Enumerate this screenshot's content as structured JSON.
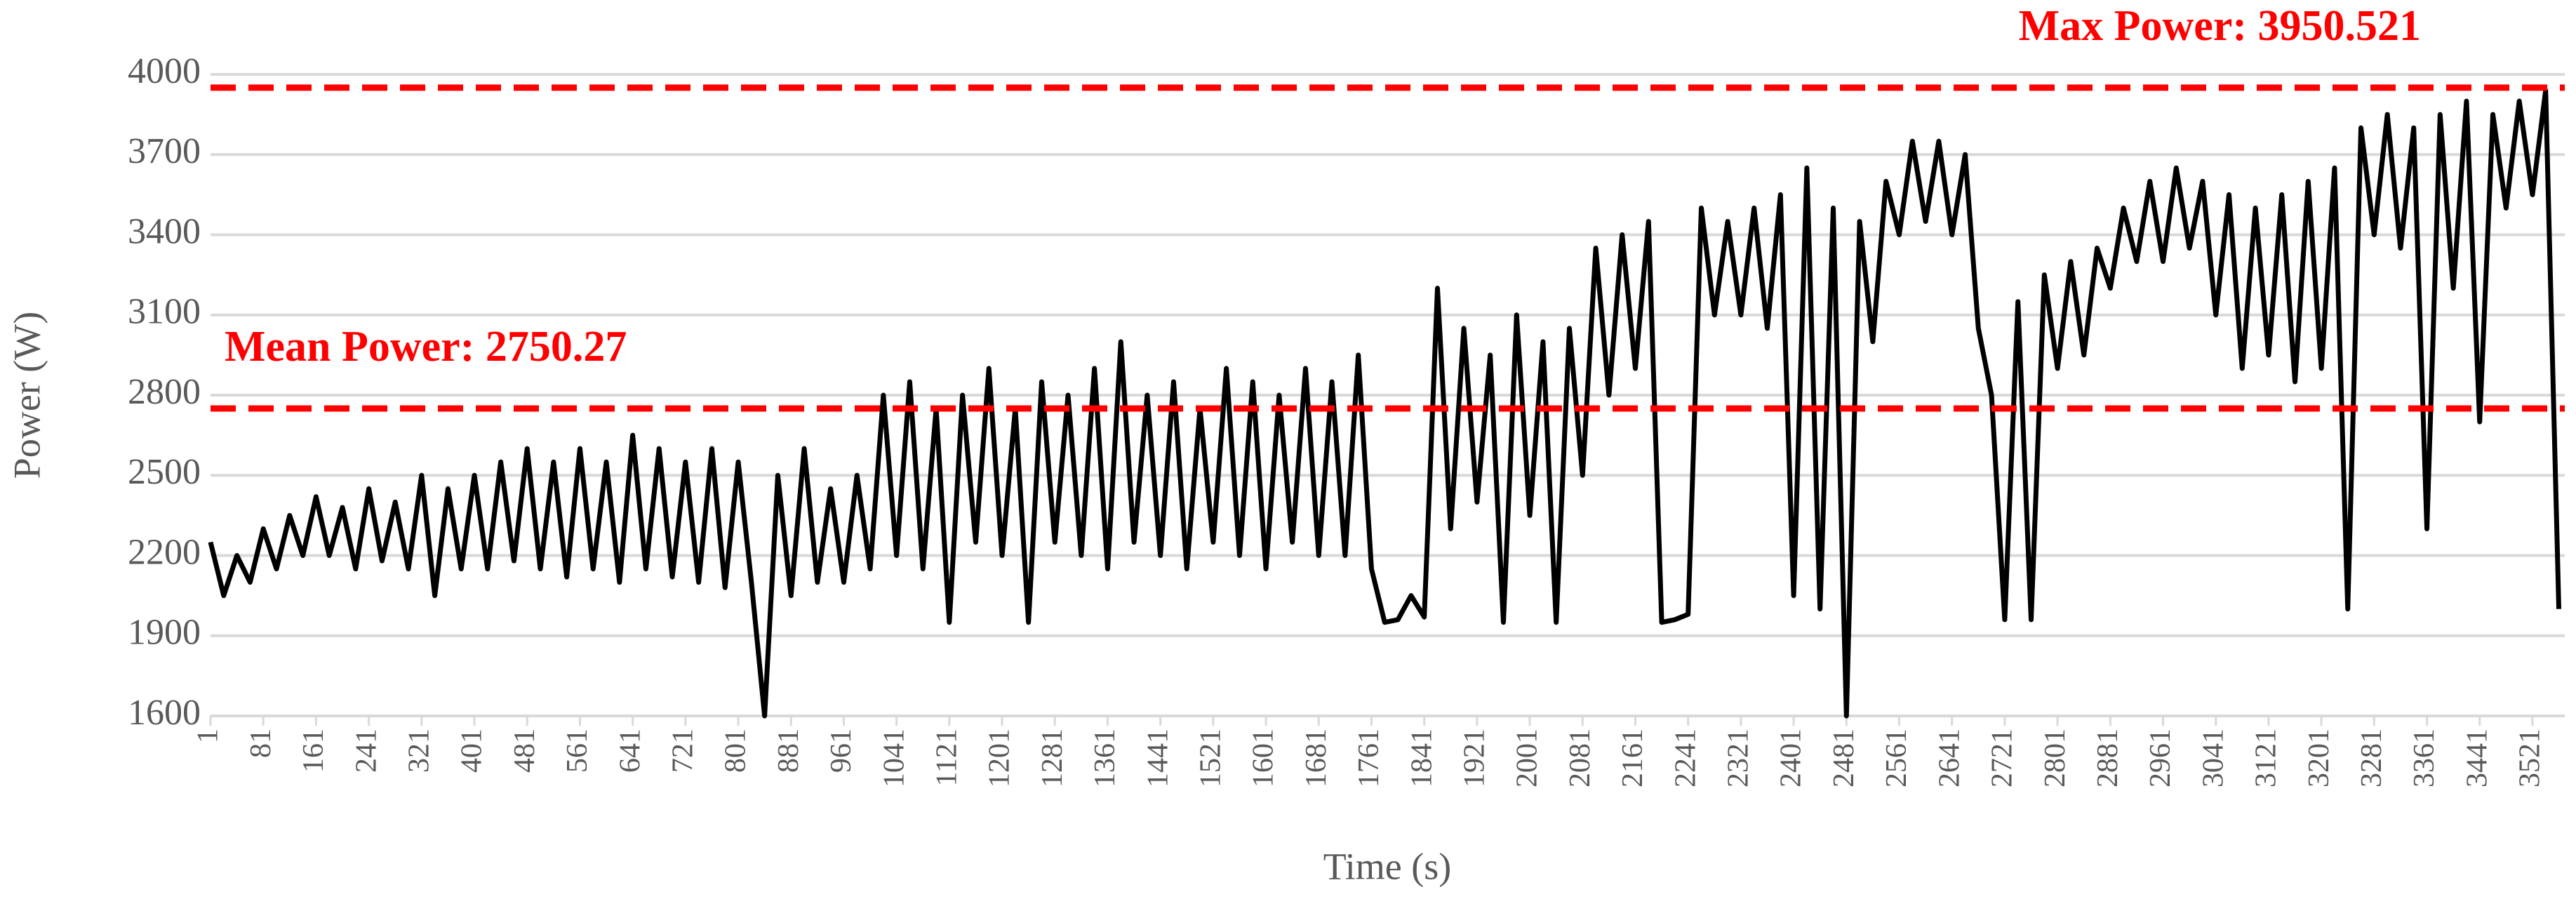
{
  "chart_data": {
    "type": "line",
    "xlabel": "Time (s)",
    "ylabel": "Power (W)",
    "x": [
      1,
      21,
      41,
      61,
      81,
      101,
      121,
      141,
      161,
      181,
      201,
      221,
      241,
      261,
      281,
      301,
      321,
      341,
      361,
      381,
      401,
      421,
      441,
      461,
      481,
      501,
      521,
      541,
      561,
      581,
      601,
      621,
      641,
      661,
      681,
      701,
      721,
      741,
      761,
      781,
      801,
      821,
      841,
      861,
      881,
      901,
      921,
      941,
      961,
      981,
      1001,
      1021,
      1041,
      1061,
      1081,
      1101,
      1121,
      1141,
      1161,
      1181,
      1201,
      1221,
      1241,
      1261,
      1281,
      1301,
      1321,
      1341,
      1361,
      1381,
      1401,
      1421,
      1441,
      1461,
      1481,
      1501,
      1521,
      1541,
      1561,
      1581,
      1601,
      1621,
      1641,
      1661,
      1681,
      1701,
      1721,
      1741,
      1761,
      1781,
      1801,
      1821,
      1841,
      1861,
      1881,
      1901,
      1921,
      1941,
      1961,
      1981,
      2001,
      2021,
      2041,
      2061,
      2081,
      2101,
      2121,
      2141,
      2161,
      2181,
      2201,
      2221,
      2241,
      2261,
      2281,
      2301,
      2321,
      2341,
      2361,
      2381,
      2401,
      2421,
      2441,
      2461,
      2481,
      2501,
      2521,
      2541,
      2561,
      2581,
      2601,
      2621,
      2641,
      2661,
      2681,
      2701,
      2721,
      2741,
      2761,
      2781,
      2801,
      2821,
      2841,
      2861,
      2881,
      2901,
      2921,
      2941,
      2961,
      2981,
      3001,
      3021,
      3041,
      3061,
      3081,
      3101,
      3121,
      3141,
      3161,
      3181,
      3201,
      3221,
      3241,
      3261,
      3281,
      3301,
      3321,
      3341,
      3361,
      3381,
      3401,
      3421,
      3441,
      3461,
      3481,
      3501,
      3521,
      3541,
      3561
    ],
    "series": [
      {
        "color": "#000000",
        "values": [
          2250,
          2050,
          2200,
          2100,
          2300,
          2150,
          2350,
          2200,
          2420,
          2200,
          2380,
          2150,
          2450,
          2180,
          2400,
          2150,
          2500,
          2050,
          2450,
          2150,
          2500,
          2150,
          2550,
          2180,
          2600,
          2150,
          2550,
          2120,
          2600,
          2150,
          2550,
          2100,
          2650,
          2150,
          2600,
          2120,
          2550,
          2100,
          2600,
          2080,
          2550,
          2100,
          1600,
          2500,
          2050,
          2600,
          2100,
          2450,
          2100,
          2500,
          2150,
          2800,
          2200,
          2850,
          2150,
          2750,
          1950,
          2800,
          2250,
          2900,
          2200,
          2750,
          1950,
          2850,
          2250,
          2800,
          2200,
          2900,
          2150,
          3000,
          2250,
          2800,
          2200,
          2850,
          2150,
          2750,
          2250,
          2900,
          2200,
          2850,
          2150,
          2800,
          2250,
          2900,
          2200,
          2850,
          2200,
          2950,
          2150,
          1950,
          1960,
          2050,
          1970,
          3200,
          2300,
          3050,
          2400,
          2950,
          1950,
          3100,
          2350,
          3000,
          1950,
          3050,
          2500,
          3350,
          2800,
          3400,
          2900,
          3450,
          1950,
          1960,
          1980,
          3500,
          3100,
          3450,
          3100,
          3500,
          3050,
          3550,
          2050,
          3650,
          2000,
          3500,
          1600,
          3450,
          3000,
          3600,
          3400,
          3750,
          3450,
          3750,
          3400,
          3700,
          3050,
          2800,
          1960,
          3150,
          1960,
          3250,
          2900,
          3300,
          2950,
          3350,
          3200,
          3500,
          3300,
          3600,
          3300,
          3650,
          3350,
          3600,
          3100,
          3550,
          2900,
          3500,
          2950,
          3550,
          2850,
          3600,
          2900,
          3650,
          2000,
          3800,
          3400,
          3850,
          3350,
          3800,
          2300,
          3850,
          3200,
          3900,
          2700,
          3850,
          3500,
          3900,
          3550,
          3940,
          2000
        ]
      }
    ],
    "xlim": [
      1,
      3570
    ],
    "xticks": [
      1,
      81,
      161,
      241,
      321,
      401,
      481,
      561,
      641,
      721,
      801,
      881,
      961,
      1041,
      1121,
      1201,
      1281,
      1361,
      1441,
      1521,
      1601,
      1681,
      1761,
      1841,
      1921,
      2001,
      2081,
      2161,
      2241,
      2321,
      2401,
      2481,
      2561,
      2641,
      2721,
      2801,
      2881,
      2961,
      3041,
      3121,
      3201,
      3281,
      3361,
      3441,
      3521
    ],
    "ylim": [
      1600,
      4000
    ],
    "yticks": [
      1600,
      1900,
      2200,
      2500,
      2800,
      3100,
      3400,
      3700,
      4000
    ],
    "grid": true,
    "reference_lines": [
      {
        "label": "Max Power: 3950.521",
        "value": 3950.521,
        "color": "#ff0000"
      },
      {
        "label": "Mean Power: 2750.27",
        "value": 2750.27,
        "color": "#ff0000"
      }
    ]
  }
}
